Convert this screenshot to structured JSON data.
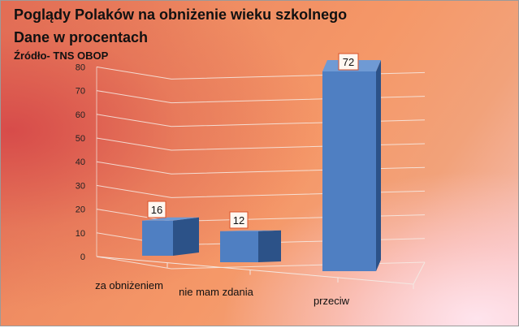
{
  "header": {
    "title": "Poglądy Polaków  na obniżenie wieku szkolnego",
    "subtitle": "Dane w procentach",
    "source": "Źródło-  TNS OBOP"
  },
  "colors": {
    "bar_front": "#4f7fc2",
    "bar_side": "#2c5288",
    "bar_top": "#6f9ad4",
    "label_border": "#d9532a",
    "grid": "#f6ece6"
  },
  "chart_data": {
    "type": "bar",
    "title": "Poglądy Polaków  na obniżenie wieku szkolnego",
    "subtitle": "Dane w procentach",
    "categories": [
      "za obniżeniem",
      "nie mam zdania",
      "przeciw"
    ],
    "values": [
      16,
      12,
      72
    ],
    "ylim": [
      0,
      80
    ],
    "yticks": [
      0,
      10,
      20,
      30,
      40,
      50,
      60,
      70,
      80
    ],
    "grid": true,
    "data_labels": true,
    "legend": "none",
    "style": "3d"
  }
}
